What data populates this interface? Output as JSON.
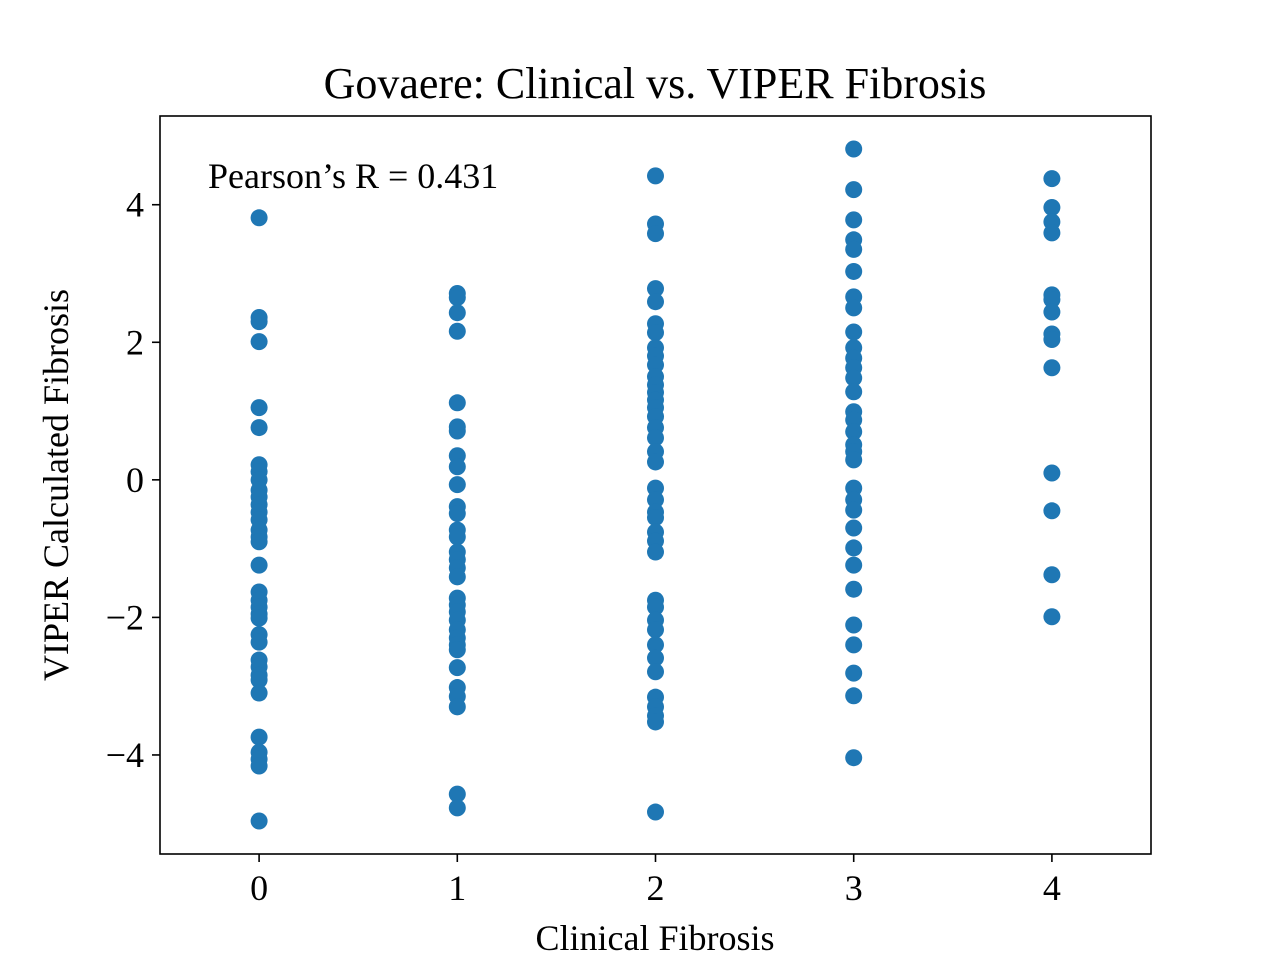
{
  "chart_data": {
    "type": "scatter",
    "title": "Govaere: Clinical vs. VIPER Fibrosis",
    "x_label": "Clinical Fibrosis",
    "y_label": "VIPER Calculated Fibrosis",
    "annotation": "Pearson’s R = 0.431",
    "color": "#1f77b4",
    "xlim": [
      -0.5,
      4.5
    ],
    "ylim": [
      -5.44,
      5.29
    ],
    "xticks": [
      0,
      1,
      2,
      3,
      4
    ],
    "yticks": [
      {
        "value": -4,
        "label": "−4"
      },
      {
        "value": -2,
        "label": "−2"
      },
      0,
      2,
      4
    ],
    "x": [
      0,
      0,
      0,
      0,
      0,
      0,
      0,
      0,
      0,
      0,
      0,
      0,
      0,
      0,
      0,
      0,
      0,
      0,
      0,
      0,
      0,
      0,
      0,
      0,
      0,
      0,
      0,
      0,
      0,
      0,
      0,
      0,
      0,
      0,
      0,
      1,
      1,
      1,
      1,
      1,
      1,
      1,
      1,
      1,
      1,
      1,
      1,
      1,
      1,
      1,
      1,
      1,
      1,
      1,
      1,
      1,
      1,
      1,
      1,
      1,
      1,
      1,
      1,
      1,
      1,
      1,
      1,
      2,
      2,
      2,
      2,
      2,
      2,
      2,
      2,
      2,
      2,
      2,
      2,
      2,
      2,
      2,
      2,
      2,
      2,
      2,
      2,
      2,
      2,
      2,
      2,
      2,
      2,
      2,
      2,
      2,
      2,
      2,
      2,
      2,
      2,
      2,
      2,
      2,
      2,
      2,
      3,
      3,
      3,
      3,
      3,
      3,
      3,
      3,
      3,
      3,
      3,
      3,
      3,
      3,
      3,
      3,
      3,
      3,
      3,
      3,
      3,
      3,
      3,
      3,
      3,
      3,
      3,
      3,
      3,
      3,
      3,
      3,
      4,
      4,
      4,
      4,
      4,
      4,
      4,
      4,
      4,
      4,
      4,
      4,
      4,
      4
    ],
    "y": [
      3.81,
      2.36,
      2.3,
      2.01,
      1.05,
      0.76,
      0.22,
      0.12,
      0,
      -0.15,
      -0.25,
      -0.36,
      -0.47,
      -0.58,
      -0.73,
      -0.83,
      -0.9,
      -1.24,
      -1.63,
      -1.75,
      -1.85,
      -1.95,
      -2.01,
      -2.25,
      -2.36,
      -2.62,
      -2.72,
      -2.84,
      -2.91,
      -3.1,
      -3.74,
      -3.96,
      -4.06,
      -4.16,
      -4.96,
      2.71,
      2.65,
      2.43,
      2.16,
      1.12,
      0.77,
      0.71,
      0.35,
      0.19,
      -0.07,
      -0.39,
      -0.49,
      -0.73,
      -0.83,
      -1.05,
      -1.16,
      -1.28,
      -1.41,
      -1.72,
      -1.82,
      -1.92,
      -2.04,
      -2.18,
      -2.3,
      -2.4,
      -2.47,
      -2.73,
      -3.02,
      -3.15,
      -3.3,
      -4.57,
      -4.77,
      4.42,
      3.72,
      3.58,
      2.78,
      2.59,
      2.27,
      2.14,
      1.92,
      1.8,
      1.67,
      1.5,
      1.38,
      1.27,
      1.16,
      1.05,
      0.92,
      0.76,
      0.61,
      0.41,
      0.26,
      -0.12,
      -0.29,
      -0.47,
      -0.55,
      -0.76,
      -0.89,
      -1.05,
      -1.75,
      -1.85,
      -2.04,
      -2.18,
      -2.4,
      -2.59,
      -2.79,
      -3.16,
      -3.3,
      -3.43,
      -3.52,
      -4.83,
      4.81,
      4.22,
      3.78,
      3.49,
      3.35,
      3.03,
      2.66,
      2.5,
      2.15,
      1.92,
      1.77,
      1.63,
      1.48,
      1.28,
      0.99,
      0.87,
      0.7,
      0.51,
      0.41,
      0.29,
      -0.12,
      -0.29,
      -0.44,
      -0.7,
      -0.99,
      -1.24,
      -1.59,
      -2.11,
      -2.4,
      -2.81,
      -3.14,
      -4.04,
      4.38,
      3.96,
      3.75,
      3.59,
      2.69,
      2.62,
      2.44,
      2.12,
      2.04,
      1.63,
      0.1,
      -0.45,
      -1.38,
      -1.99
    ]
  }
}
